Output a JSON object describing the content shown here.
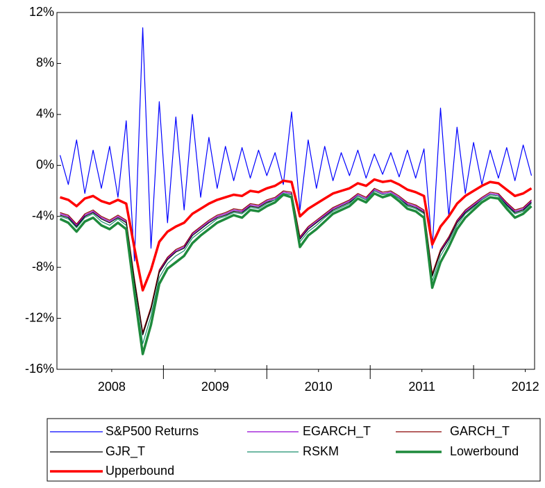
{
  "chart_data": {
    "type": "line",
    "x": [
      2008.0,
      2008.08,
      2008.16,
      2008.24,
      2008.32,
      2008.4,
      2008.48,
      2008.56,
      2008.64,
      2008.72,
      2008.8,
      2008.88,
      2008.96,
      2009.04,
      2009.12,
      2009.2,
      2009.28,
      2009.36,
      2009.44,
      2009.52,
      2009.6,
      2009.68,
      2009.76,
      2009.84,
      2009.92,
      2010.0,
      2010.08,
      2010.16,
      2010.24,
      2010.32,
      2010.4,
      2010.48,
      2010.56,
      2010.64,
      2010.72,
      2010.8,
      2010.88,
      2010.96,
      2011.04,
      2011.12,
      2011.2,
      2011.28,
      2011.36,
      2011.44,
      2011.52,
      2011.6,
      2011.68,
      2011.76,
      2011.84,
      2011.92,
      2012.0,
      2012.08,
      2012.16,
      2012.24,
      2012.32,
      2012.4,
      2012.48,
      2012.56
    ],
    "series": [
      {
        "name": "S&P500 Returns",
        "color": "#0000ff",
        "width": 1.2,
        "values": [
          0.8,
          -1.5,
          2.0,
          -2.2,
          1.2,
          -1.8,
          1.5,
          -2.5,
          3.5,
          -7.5,
          10.8,
          -6.5,
          5.0,
          -4.5,
          3.8,
          -3.5,
          4.0,
          -2.5,
          2.2,
          -1.8,
          1.5,
          -1.2,
          1.4,
          -1.0,
          1.2,
          -0.8,
          1.0,
          -1.5,
          4.2,
          -3.5,
          2.0,
          -1.8,
          1.5,
          -1.2,
          1.0,
          -0.8,
          1.2,
          -1.0,
          0.9,
          -0.7,
          1.0,
          -0.9,
          1.2,
          -1.0,
          1.3,
          -6.5,
          4.5,
          -4.0,
          3.0,
          -2.2,
          1.8,
          -1.5,
          1.2,
          -1.0,
          1.4,
          -1.2,
          1.6,
          -0.8
        ]
      },
      {
        "name": "EGARCH_T",
        "color": "#9400d3",
        "width": 1.2,
        "values": [
          -3.8,
          -4.0,
          -4.7,
          -3.9,
          -3.6,
          -4.1,
          -4.4,
          -4.0,
          -4.4,
          -9.0,
          -13.2,
          -11.2,
          -8.3,
          -7.3,
          -6.7,
          -6.4,
          -5.4,
          -4.9,
          -4.4,
          -4.0,
          -3.8,
          -3.5,
          -3.6,
          -3.1,
          -3.2,
          -2.8,
          -2.6,
          -2.1,
          -2.2,
          -5.7,
          -4.9,
          -4.4,
          -3.9,
          -3.4,
          -3.1,
          -2.8,
          -2.3,
          -2.6,
          -1.9,
          -2.2,
          -2.1,
          -2.5,
          -3.0,
          -3.2,
          -3.6,
          -8.6,
          -6.7,
          -5.7,
          -4.4,
          -3.6,
          -3.1,
          -2.6,
          -2.2,
          -2.3,
          -3.0,
          -3.6,
          -3.4,
          -2.8
        ]
      },
      {
        "name": "GARCH_T",
        "color": "#8b0000",
        "width": 1.2,
        "values": [
          -3.7,
          -3.9,
          -4.6,
          -3.8,
          -3.5,
          -4.0,
          -4.3,
          -3.9,
          -4.3,
          -8.9,
          -13.1,
          -11.1,
          -8.2,
          -7.2,
          -6.6,
          -6.3,
          -5.3,
          -4.8,
          -4.3,
          -3.9,
          -3.7,
          -3.4,
          -3.5,
          -3.0,
          -3.1,
          -2.7,
          -2.5,
          -2.0,
          -2.1,
          -5.6,
          -4.8,
          -4.3,
          -3.8,
          -3.3,
          -3.0,
          -2.7,
          -2.2,
          -2.5,
          -1.8,
          -2.1,
          -2.0,
          -2.4,
          -2.9,
          -3.1,
          -3.5,
          -8.5,
          -6.6,
          -5.6,
          -4.3,
          -3.5,
          -3.0,
          -2.5,
          -2.1,
          -2.2,
          -2.9,
          -3.5,
          -3.3,
          -2.7
        ]
      },
      {
        "name": "GJR_T",
        "color": "#000000",
        "width": 1.2,
        "values": [
          -3.9,
          -4.1,
          -4.8,
          -4.0,
          -3.7,
          -4.2,
          -4.5,
          -4.1,
          -4.5,
          -9.1,
          -13.3,
          -11.3,
          -8.4,
          -7.4,
          -6.8,
          -6.5,
          -5.5,
          -5.0,
          -4.5,
          -4.1,
          -3.9,
          -3.6,
          -3.7,
          -3.2,
          -3.3,
          -2.9,
          -2.7,
          -2.2,
          -2.3,
          -5.8,
          -5.0,
          -4.5,
          -4.0,
          -3.5,
          -3.2,
          -2.9,
          -2.4,
          -2.7,
          -2.0,
          -2.3,
          -2.2,
          -2.6,
          -3.1,
          -3.3,
          -3.7,
          -8.7,
          -6.8,
          -5.8,
          -4.5,
          -3.7,
          -3.2,
          -2.7,
          -2.3,
          -2.4,
          -3.1,
          -3.7,
          -3.5,
          -2.9
        ]
      },
      {
        "name": "RSKM",
        "color": "#1a8f6e",
        "width": 1.2,
        "values": [
          -4.0,
          -4.2,
          -4.9,
          -4.1,
          -3.8,
          -4.4,
          -4.7,
          -4.2,
          -4.7,
          -9.5,
          -14.0,
          -11.8,
          -8.8,
          -7.7,
          -7.1,
          -6.7,
          -5.7,
          -5.2,
          -4.7,
          -4.2,
          -4.0,
          -3.7,
          -3.8,
          -3.3,
          -3.4,
          -3.0,
          -2.7,
          -2.2,
          -2.3,
          -6.0,
          -5.2,
          -4.7,
          -4.1,
          -3.6,
          -3.3,
          -3.0,
          -2.4,
          -2.7,
          -2.0,
          -2.3,
          -2.2,
          -2.6,
          -3.2,
          -3.4,
          -3.8,
          -9.1,
          -7.1,
          -6.0,
          -4.7,
          -3.8,
          -3.3,
          -2.7,
          -2.3,
          -2.4,
          -3.2,
          -3.8,
          -3.6,
          -3.0
        ]
      },
      {
        "name": "Lowerbound",
        "color": "#1e8a3c",
        "width": 3.5,
        "values": [
          -4.2,
          -4.5,
          -5.2,
          -4.4,
          -4.1,
          -4.7,
          -5.0,
          -4.5,
          -5.0,
          -10.0,
          -14.8,
          -12.5,
          -9.3,
          -8.1,
          -7.6,
          -7.1,
          -6.1,
          -5.5,
          -5.0,
          -4.5,
          -4.2,
          -3.9,
          -4.1,
          -3.5,
          -3.6,
          -3.2,
          -2.9,
          -2.3,
          -2.5,
          -6.4,
          -5.5,
          -5.0,
          -4.4,
          -3.8,
          -3.5,
          -3.2,
          -2.6,
          -2.9,
          -2.2,
          -2.5,
          -2.3,
          -2.8,
          -3.4,
          -3.6,
          -4.1,
          -9.6,
          -7.6,
          -6.4,
          -5.0,
          -4.1,
          -3.5,
          -2.9,
          -2.5,
          -2.6,
          -3.4,
          -4.1,
          -3.8,
          -3.2
        ]
      },
      {
        "name": "Upperbound",
        "color": "#ff0000",
        "width": 3.5,
        "values": [
          -2.5,
          -2.7,
          -3.2,
          -2.6,
          -2.4,
          -2.8,
          -3.0,
          -2.7,
          -3.0,
          -6.5,
          -9.8,
          -8.2,
          -6.0,
          -5.2,
          -4.8,
          -4.5,
          -3.8,
          -3.4,
          -3.0,
          -2.7,
          -2.5,
          -2.3,
          -2.4,
          -2.0,
          -2.1,
          -1.8,
          -1.6,
          -1.2,
          -1.3,
          -4.0,
          -3.4,
          -3.0,
          -2.6,
          -2.2,
          -2.0,
          -1.8,
          -1.4,
          -1.6,
          -1.1,
          -1.3,
          -1.2,
          -1.5,
          -1.9,
          -2.1,
          -2.4,
          -6.2,
          -4.8,
          -4.0,
          -3.0,
          -2.4,
          -2.0,
          -1.6,
          -1.3,
          -1.4,
          -1.9,
          -2.4,
          -2.2,
          -1.8
        ]
      }
    ],
    "xlim": [
      2007.97,
      2012.59
    ],
    "xticks": [
      {
        "value": 2008.5,
        "label": "2008"
      },
      {
        "value": 2009.5,
        "label": "2009"
      },
      {
        "value": 2010.5,
        "label": "2010"
      },
      {
        "value": 2011.5,
        "label": "2011"
      },
      {
        "value": 2012.5,
        "label": "2012"
      }
    ],
    "xminorticks": [
      2009,
      2010,
      2011,
      2012
    ],
    "ylim": [
      -16,
      12
    ],
    "yticks": [
      {
        "value": -16,
        "label": "-16%"
      },
      {
        "value": -12,
        "label": "-12%"
      },
      {
        "value": -8,
        "label": "-8%"
      },
      {
        "value": -4,
        "label": "-4%"
      },
      {
        "value": 0,
        "label": "0%"
      },
      {
        "value": 4,
        "label": "4%"
      },
      {
        "value": 8,
        "label": "8%"
      },
      {
        "value": 12,
        "label": "12%"
      }
    ],
    "grid": false,
    "legend": "bottom"
  }
}
